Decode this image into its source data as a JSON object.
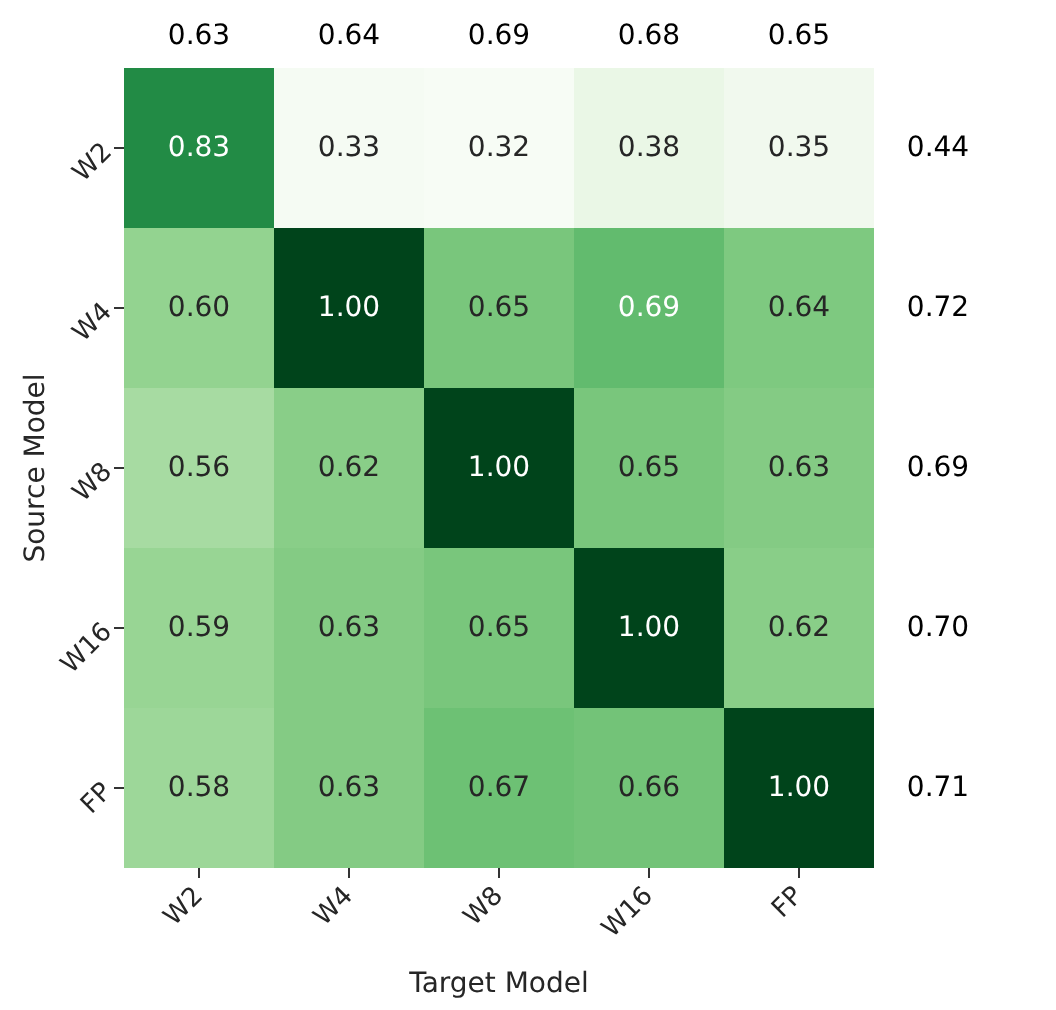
{
  "chart_data": {
    "type": "heatmap",
    "xlabel": "Target Model",
    "ylabel": "Source Model",
    "categories": [
      "W2",
      "W4",
      "W8",
      "W16",
      "FP"
    ],
    "y_categories": [
      "W2",
      "W4",
      "W8",
      "W16",
      "FP"
    ],
    "y2_categories": [
      "0.44",
      "0.72",
      "0.69",
      "0.70",
      "0.71"
    ],
    "annotations": [
      "0.63",
      "0.64",
      "0.69",
      "0.68",
      "0.65"
    ],
    "cells": [
      [
        0.83,
        0.33,
        0.32,
        0.38,
        0.35
      ],
      [
        0.6,
        1.0,
        0.65,
        0.69,
        0.64
      ],
      [
        0.56,
        0.62,
        1.0,
        0.65,
        0.63
      ],
      [
        0.59,
        0.63,
        0.65,
        1.0,
        0.62
      ],
      [
        0.58,
        0.63,
        0.67,
        0.66,
        1.0
      ]
    ],
    "cell_labels": [
      [
        "0.83",
        "0.33",
        "0.32",
        "0.38",
        "0.35"
      ],
      [
        "0.60",
        "1.00",
        "0.65",
        "0.69",
        "0.64"
      ],
      [
        "0.56",
        "0.62",
        "1.00",
        "0.65",
        "0.63"
      ],
      [
        "0.59",
        "0.63",
        "0.65",
        "1.00",
        "0.62"
      ],
      [
        "0.58",
        "0.63",
        "0.67",
        "0.66",
        "1.00"
      ]
    ]
  }
}
